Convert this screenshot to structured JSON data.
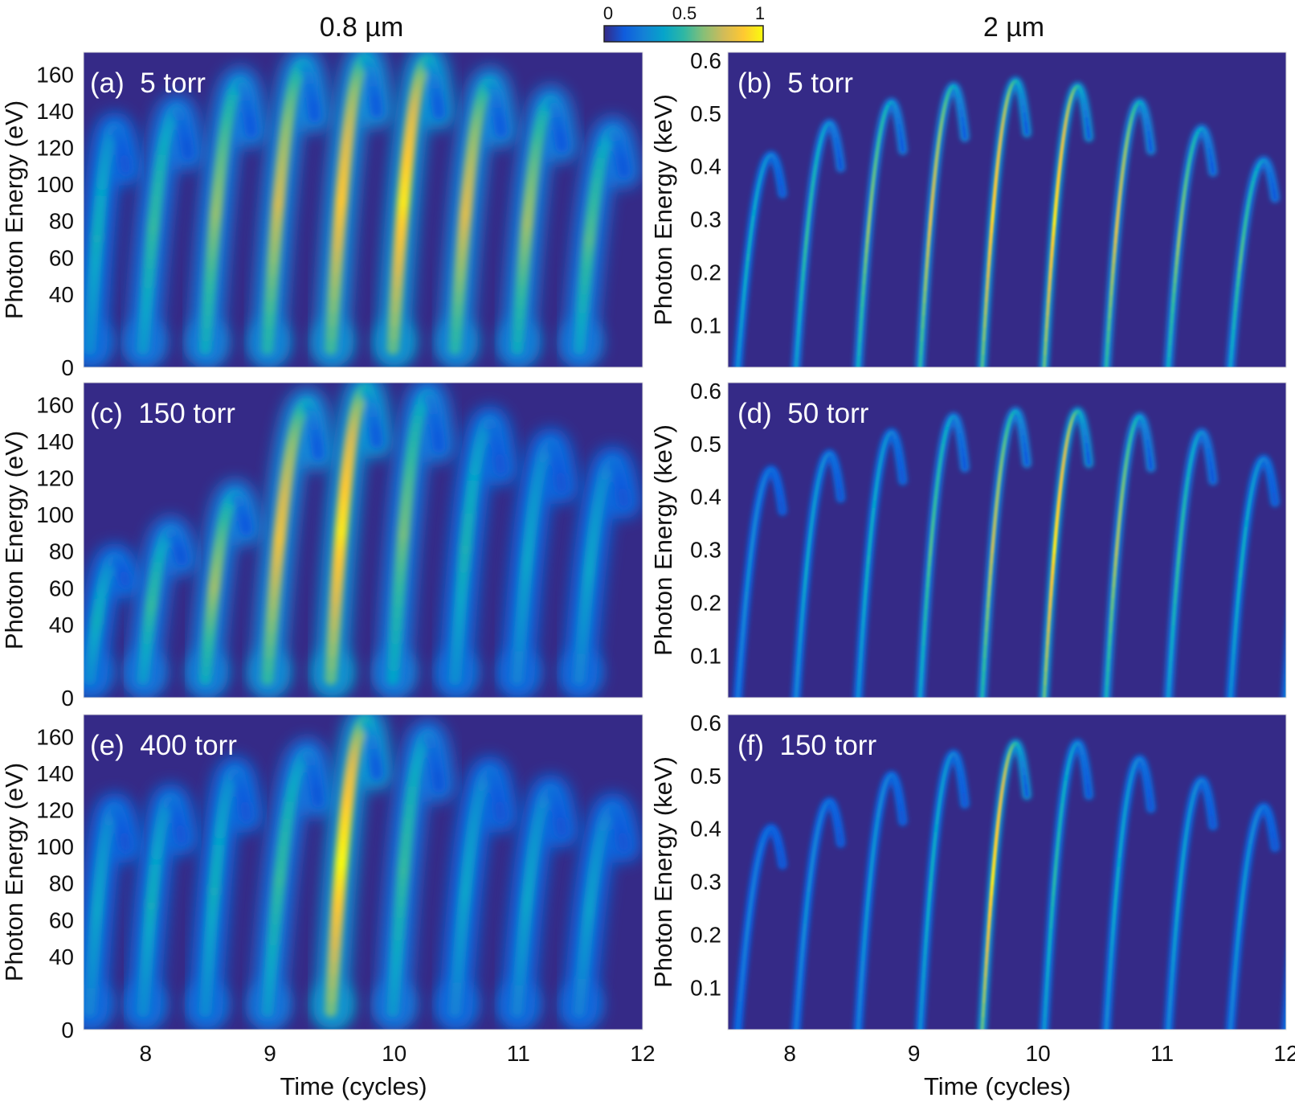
{
  "figure": {
    "column_titles": [
      "0.8 µm",
      "2 µm"
    ],
    "colorbar": {
      "ticks": [
        "0",
        "0.5",
        "1"
      ],
      "range": [
        0,
        1
      ],
      "colormap": [
        "#352a87",
        "#0f5cdd",
        "#1481d6",
        "#06a4ca",
        "#2eb7a4",
        "#87bf77",
        "#d1bb59",
        "#fec832",
        "#f9fb0e"
      ]
    },
    "background_color": "#352a87"
  },
  "chart_data": [
    {
      "type": "heatmap",
      "panel_label": "(a)  5 torr",
      "column": 0,
      "row": 0,
      "xlabel": "Time (cycles)",
      "ylabel": "Photon Energy (eV)",
      "xlim": [
        7.5,
        12
      ],
      "ylim": [
        0,
        172
      ],
      "ytick_labels": [
        "0",
        "40",
        "60",
        "80",
        "100",
        "120",
        "140",
        "160"
      ],
      "ytick_values": [
        0,
        40,
        60,
        80,
        100,
        120,
        140,
        160
      ],
      "arches_t_base_t_peak_peak_intensity": [
        [
          7.55,
          7.75,
          130,
          0.35
        ],
        [
          7.98,
          8.25,
          140,
          0.45
        ],
        [
          8.48,
          8.76,
          155,
          0.6
        ],
        [
          8.98,
          9.27,
          165,
          0.72
        ],
        [
          9.49,
          9.77,
          168,
          0.85
        ],
        [
          9.99,
          10.27,
          167,
          0.95
        ],
        [
          10.49,
          10.77,
          155,
          0.75
        ],
        [
          10.99,
          11.26,
          145,
          0.62
        ],
        [
          11.49,
          11.76,
          128,
          0.5
        ]
      ]
    },
    {
      "type": "heatmap",
      "panel_label": "(b)  5 torr",
      "column": 1,
      "row": 0,
      "xlabel": "Time (cycles)",
      "ylabel": "Photon Energy (keV)",
      "xlim": [
        7.5,
        12
      ],
      "ylim": [
        0.02,
        0.615
      ],
      "ytick_labels": [
        "0.1",
        "0.2",
        "0.3",
        "0.4",
        "0.5",
        "0.6"
      ],
      "ytick_values": [
        0.1,
        0.2,
        0.3,
        0.4,
        0.5,
        0.6
      ],
      "arches_t_base_t_peak_peak_intensity": [
        [
          7.58,
          7.85,
          0.42,
          0.35
        ],
        [
          8.05,
          8.32,
          0.48,
          0.45
        ],
        [
          8.55,
          8.82,
          0.52,
          0.6
        ],
        [
          9.05,
          9.32,
          0.55,
          0.75
        ],
        [
          9.55,
          9.82,
          0.56,
          0.9
        ],
        [
          10.05,
          10.32,
          0.55,
          0.95
        ],
        [
          10.55,
          10.82,
          0.52,
          0.75
        ],
        [
          11.05,
          11.32,
          0.47,
          0.6
        ],
        [
          11.55,
          11.82,
          0.41,
          0.5
        ]
      ]
    },
    {
      "type": "heatmap",
      "panel_label": "(c)  150 torr",
      "column": 0,
      "row": 1,
      "xlabel": "Time (cycles)",
      "ylabel": "Photon Energy (eV)",
      "xlim": [
        7.5,
        12
      ],
      "ylim": [
        0,
        172
      ],
      "ytick_labels": [
        "0",
        "40",
        "60",
        "80",
        "100",
        "120",
        "140",
        "160"
      ],
      "ytick_values": [
        0,
        40,
        60,
        80,
        100,
        120,
        140,
        160
      ],
      "arches_t_base_t_peak_peak_intensity": [
        [
          7.55,
          7.75,
          75,
          0.35
        ],
        [
          7.98,
          8.2,
          90,
          0.45
        ],
        [
          8.48,
          8.72,
          110,
          0.62
        ],
        [
          8.98,
          9.3,
          160,
          0.8
        ],
        [
          9.49,
          9.77,
          168,
          0.95
        ],
        [
          9.99,
          10.27,
          165,
          0.55
        ],
        [
          10.49,
          10.77,
          150,
          0.38
        ],
        [
          10.99,
          11.26,
          138,
          0.3
        ],
        [
          11.49,
          11.76,
          128,
          0.3
        ]
      ]
    },
    {
      "type": "heatmap",
      "panel_label": "(d)  50 torr",
      "column": 1,
      "row": 1,
      "xlabel": "Time (cycles)",
      "ylabel": "Photon Energy (keV)",
      "xlim": [
        7.5,
        12
      ],
      "ylim": [
        0.02,
        0.615
      ],
      "ytick_labels": [
        "0.1",
        "0.2",
        "0.3",
        "0.4",
        "0.5",
        "0.6"
      ],
      "ytick_values": [
        0.1,
        0.2,
        0.3,
        0.4,
        0.5,
        0.6
      ],
      "arches_t_base_t_peak_peak_intensity": [
        [
          7.58,
          7.85,
          0.45,
          0.2
        ],
        [
          8.05,
          8.32,
          0.48,
          0.3
        ],
        [
          8.55,
          8.82,
          0.52,
          0.35
        ],
        [
          9.05,
          9.32,
          0.55,
          0.5
        ],
        [
          9.55,
          9.82,
          0.56,
          0.7
        ],
        [
          10.05,
          10.32,
          0.56,
          0.95
        ],
        [
          10.55,
          10.82,
          0.55,
          0.65
        ],
        [
          11.05,
          11.32,
          0.52,
          0.45
        ],
        [
          11.55,
          11.82,
          0.47,
          0.35
        ],
        [
          12.0,
          12.2,
          0.41,
          0.3
        ]
      ]
    },
    {
      "type": "heatmap",
      "panel_label": "(e)  400 torr",
      "column": 0,
      "row": 2,
      "xlabel": "Time (cycles)",
      "ylabel": "Photon Energy (eV)",
      "xlim": [
        7.5,
        12
      ],
      "ylim": [
        0,
        172
      ],
      "xtick_labels": [
        "8",
        "9",
        "10",
        "11",
        "12"
      ],
      "xtick_values": [
        8,
        9,
        10,
        11,
        12
      ],
      "ytick_labels": [
        "0",
        "40",
        "60",
        "80",
        "100",
        "120",
        "140",
        "160"
      ],
      "ytick_values": [
        0,
        40,
        60,
        80,
        100,
        120,
        140,
        160
      ],
      "arches_t_base_t_peak_peak_intensity": [
        [
          7.55,
          7.75,
          120,
          0.3
        ],
        [
          7.98,
          8.2,
          125,
          0.35
        ],
        [
          8.48,
          8.72,
          140,
          0.35
        ],
        [
          8.98,
          9.3,
          150,
          0.45
        ],
        [
          9.49,
          9.77,
          168,
          1.0
        ],
        [
          9.99,
          10.27,
          160,
          0.45
        ],
        [
          10.49,
          10.77,
          140,
          0.3
        ],
        [
          10.99,
          11.26,
          130,
          0.3
        ],
        [
          11.49,
          11.76,
          120,
          0.28
        ]
      ]
    },
    {
      "type": "heatmap",
      "panel_label": "(f)  150 torr",
      "column": 1,
      "row": 2,
      "xlabel": "Time (cycles)",
      "ylabel": "Photon Energy (keV)",
      "xlim": [
        7.5,
        12
      ],
      "ylim": [
        0.02,
        0.615
      ],
      "xtick_labels": [
        "8",
        "9",
        "10",
        "11",
        "12"
      ],
      "xtick_values": [
        8,
        9,
        10,
        11,
        12
      ],
      "ytick_labels": [
        "0.1",
        "0.2",
        "0.3",
        "0.4",
        "0.5",
        "0.6"
      ],
      "ytick_values": [
        0.1,
        0.2,
        0.3,
        0.4,
        0.5,
        0.6
      ],
      "arches_t_base_t_peak_peak_intensity": [
        [
          7.58,
          7.85,
          0.4,
          0.15
        ],
        [
          8.05,
          8.32,
          0.45,
          0.2
        ],
        [
          8.55,
          8.82,
          0.5,
          0.25
        ],
        [
          9.05,
          9.32,
          0.54,
          0.35
        ],
        [
          9.55,
          9.82,
          0.56,
          0.95
        ],
        [
          10.05,
          10.32,
          0.56,
          0.42
        ],
        [
          10.55,
          10.82,
          0.53,
          0.32
        ],
        [
          11.05,
          11.32,
          0.49,
          0.3
        ],
        [
          11.55,
          11.82,
          0.44,
          0.25
        ],
        [
          12.0,
          12.2,
          0.4,
          0.2
        ]
      ]
    }
  ]
}
